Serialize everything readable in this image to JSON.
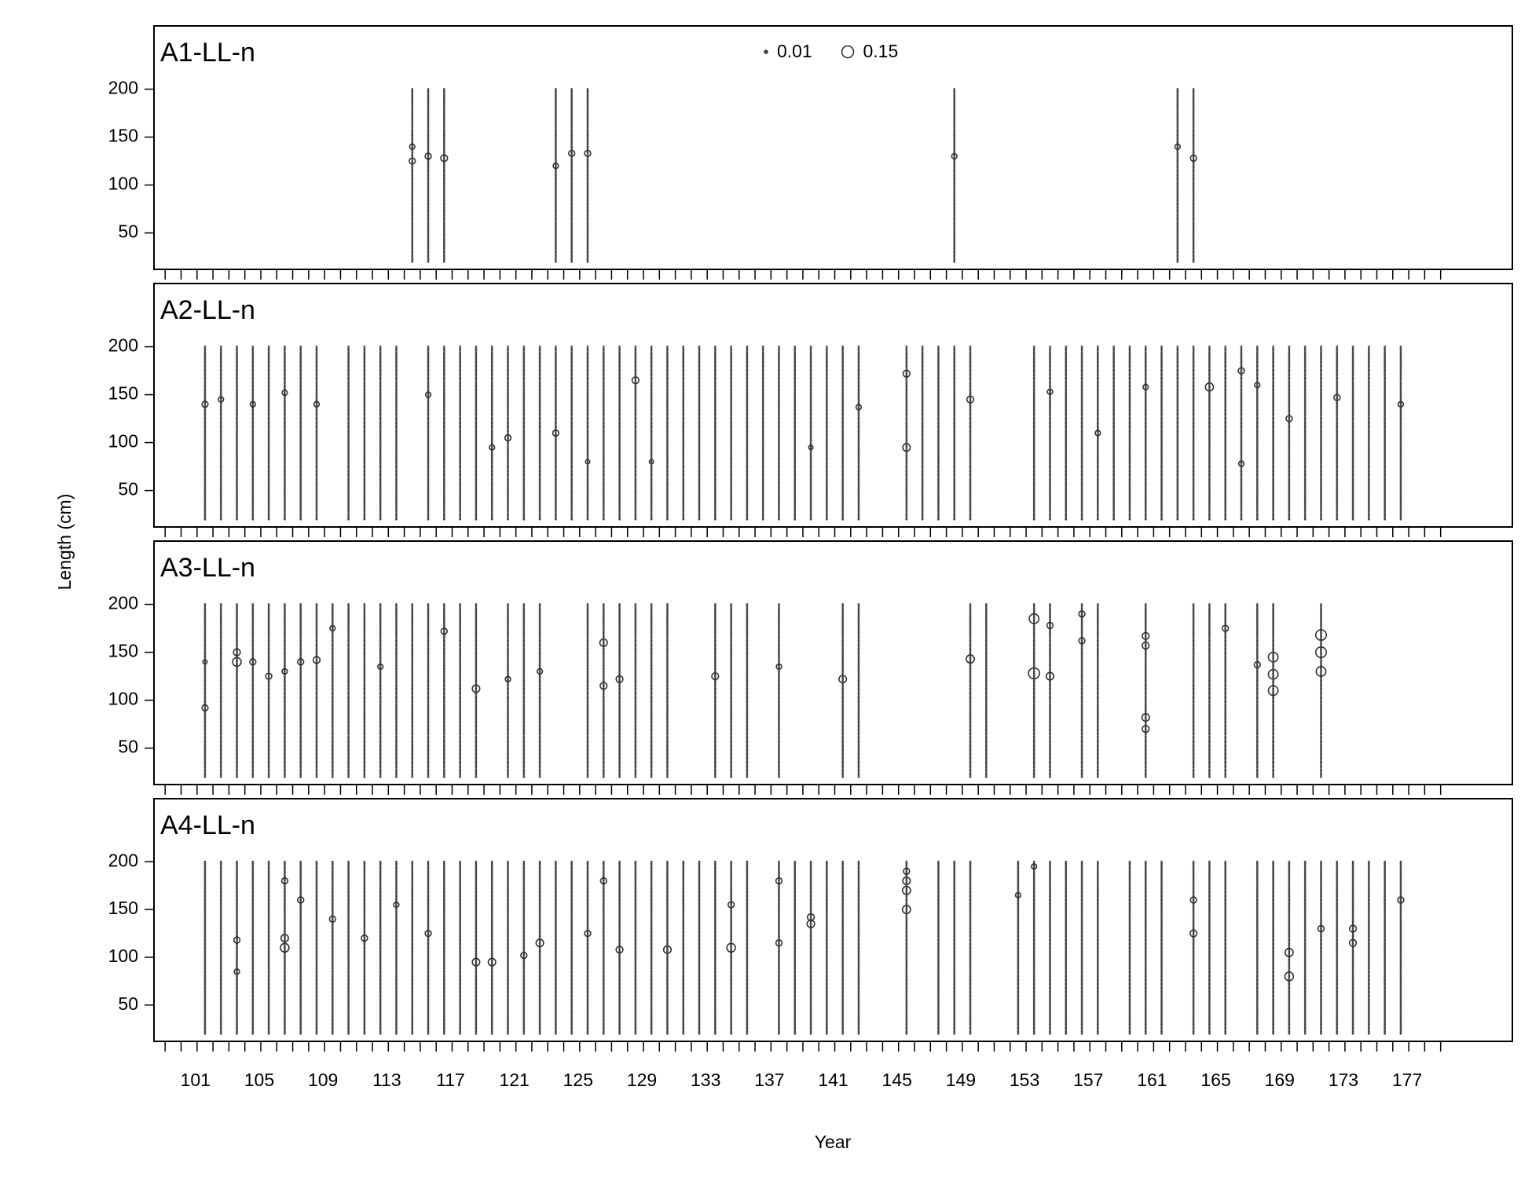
{
  "chart_data": {
    "type": "bubble",
    "x_label": "Year",
    "y_label": "Length (cm)",
    "xlim": [
      98.3,
      183.5
    ],
    "ylim": [
      12,
      266
    ],
    "yticks": [
      50,
      100,
      150,
      200
    ],
    "xticks": [
      101,
      105,
      109,
      113,
      117,
      121,
      125,
      129,
      133,
      137,
      141,
      145,
      149,
      153,
      157,
      161,
      165,
      169,
      173,
      177
    ],
    "xminor_ticks": [
      99,
      100,
      101,
      102,
      103,
      104,
      105,
      106,
      107,
      108,
      109,
      110,
      111,
      112,
      113,
      114,
      115,
      116,
      117,
      118,
      119,
      120,
      121,
      122,
      123,
      124,
      125,
      126,
      127,
      128,
      129,
      130,
      131,
      132,
      133,
      134,
      135,
      136,
      137,
      138,
      139,
      140,
      141,
      142,
      143,
      144,
      145,
      146,
      147,
      148,
      149,
      150,
      151,
      152,
      153,
      154,
      155,
      156,
      157,
      158,
      159,
      160,
      161,
      162,
      163,
      164,
      165,
      166,
      167,
      168,
      169,
      170,
      171,
      172,
      173,
      174,
      175,
      176,
      177,
      178,
      179
    ],
    "length_bins": [
      20,
      22,
      24,
      26,
      28,
      30,
      32,
      34,
      36,
      38,
      40,
      42,
      44,
      46,
      48,
      50,
      52,
      54,
      56,
      58,
      60,
      62,
      64,
      66,
      68,
      70,
      72,
      74,
      76,
      78,
      80,
      82,
      84,
      86,
      88,
      90,
      92,
      94,
      96,
      98,
      100,
      102,
      104,
      106,
      108,
      110,
      112,
      114,
      116,
      118,
      120,
      122,
      124,
      126,
      128,
      130,
      132,
      134,
      136,
      138,
      140,
      142,
      144,
      146,
      148,
      150,
      152,
      154,
      156,
      158,
      160,
      162,
      164,
      166,
      168,
      170,
      172,
      174,
      176,
      178,
      180,
      182,
      184,
      186,
      188,
      190,
      192,
      194,
      196,
      198,
      200
    ],
    "legend": {
      "values": [
        0.01,
        0.15
      ]
    },
    "panels": [
      {
        "title": "A1-LL-n",
        "columns": [
          114.5,
          115.5,
          116.5,
          123.5,
          124.5,
          125.5,
          148.5,
          162.5,
          163.5
        ],
        "bubbles": {
          "x": [
            114.5,
            114.5,
            115.5,
            116.5,
            123.5,
            124.5,
            125.5,
            148.5,
            162.5,
            163.5
          ],
          "y": [
            125,
            140,
            130,
            128,
            120,
            133,
            133,
            130,
            140,
            128
          ],
          "size": [
            0.04,
            0.03,
            0.04,
            0.05,
            0.03,
            0.04,
            0.04,
            0.03,
            0.03,
            0.04
          ]
        }
      },
      {
        "title": "A2-LL-n",
        "columns": [
          101.5,
          102.5,
          103.5,
          104.5,
          105.5,
          106.5,
          107.5,
          108.5,
          110.5,
          111.5,
          112.5,
          113.5,
          115.5,
          116.5,
          117.5,
          118.5,
          119.5,
          120.5,
          121.5,
          122.5,
          123.5,
          124.5,
          125.5,
          126.5,
          127.5,
          128.5,
          129.5,
          130.5,
          131.5,
          132.5,
          133.5,
          134.5,
          135.5,
          136.5,
          137.5,
          138.5,
          139.5,
          140.5,
          141.5,
          142.5,
          145.5,
          146.5,
          147.5,
          148.5,
          149.5,
          153.5,
          154.5,
          155.5,
          156.5,
          157.5,
          158.5,
          159.5,
          160.5,
          161.5,
          162.5,
          163.5,
          164.5,
          165.5,
          166.5,
          167.5,
          168.5,
          169.5,
          170.5,
          171.5,
          172.5,
          173.5,
          174.5,
          175.5,
          176.5
        ],
        "bubbles": {
          "x": [
            101.5,
            102.5,
            104.5,
            106.5,
            108.5,
            115.5,
            119.5,
            120.5,
            123.5,
            125.5,
            128.5,
            129.5,
            139.5,
            142.5,
            145.5,
            145.5,
            149.5,
            154.5,
            157.5,
            160.5,
            164.5,
            166.5,
            166.5,
            167.5,
            169.5,
            172.5,
            176.5
          ],
          "y": [
            140,
            145,
            140,
            152,
            140,
            150,
            95,
            105,
            110,
            80,
            165,
            80,
            95,
            137,
            95,
            172,
            145,
            153,
            110,
            158,
            158,
            78,
            175,
            160,
            125,
            147,
            140
          ],
          "size": [
            0.04,
            0.03,
            0.03,
            0.03,
            0.03,
            0.03,
            0.03,
            0.04,
            0.04,
            0.02,
            0.05,
            0.02,
            0.02,
            0.03,
            0.06,
            0.05,
            0.05,
            0.03,
            0.03,
            0.03,
            0.07,
            0.03,
            0.04,
            0.03,
            0.04,
            0.04,
            0.03
          ]
        }
      },
      {
        "title": "A3-LL-n",
        "columns": [
          101.5,
          102.5,
          103.5,
          104.5,
          105.5,
          106.5,
          107.5,
          108.5,
          109.5,
          110.5,
          111.5,
          112.5,
          113.5,
          114.5,
          115.5,
          116.5,
          117.5,
          118.5,
          120.5,
          121.5,
          122.5,
          125.5,
          126.5,
          127.5,
          128.5,
          129.5,
          130.5,
          133.5,
          134.5,
          135.5,
          137.5,
          141.5,
          142.5,
          149.5,
          150.5,
          153.5,
          154.5,
          156.5,
          157.5,
          160.5,
          163.5,
          164.5,
          165.5,
          167.5,
          168.5,
          171.5
        ],
        "bubbles": {
          "x": [
            101.5,
            101.5,
            103.5,
            103.5,
            104.5,
            105.5,
            106.5,
            107.5,
            108.5,
            109.5,
            112.5,
            116.5,
            118.5,
            120.5,
            122.5,
            126.5,
            126.5,
            127.5,
            133.5,
            137.5,
            141.5,
            149.5,
            153.5,
            153.5,
            154.5,
            154.5,
            156.5,
            156.5,
            160.5,
            160.5,
            160.5,
            160.5,
            165.5,
            167.5,
            168.5,
            168.5,
            168.5,
            171.5,
            171.5,
            171.5
          ],
          "y": [
            92,
            140,
            140,
            150,
            140,
            125,
            130,
            140,
            142,
            175,
            135,
            172,
            112,
            122,
            130,
            160,
            115,
            122,
            125,
            135,
            122,
            143,
            185,
            128,
            125,
            178,
            190,
            162,
            70,
            82,
            157,
            167,
            175,
            137,
            145,
            127,
            110,
            168,
            150,
            130
          ],
          "size": [
            0.04,
            0.02,
            0.08,
            0.05,
            0.04,
            0.04,
            0.03,
            0.04,
            0.05,
            0.03,
            0.03,
            0.04,
            0.06,
            0.03,
            0.03,
            0.06,
            0.05,
            0.05,
            0.05,
            0.03,
            0.06,
            0.07,
            0.1,
            0.13,
            0.06,
            0.04,
            0.04,
            0.04,
            0.05,
            0.06,
            0.05,
            0.05,
            0.04,
            0.04,
            0.1,
            0.1,
            0.1,
            0.12,
            0.12,
            0.1
          ]
        }
      },
      {
        "title": "A4-LL-n",
        "columns": [
          101.5,
          102.5,
          103.5,
          104.5,
          105.5,
          106.5,
          107.5,
          108.5,
          109.5,
          110.5,
          111.5,
          112.5,
          113.5,
          114.5,
          115.5,
          116.5,
          117.5,
          118.5,
          119.5,
          120.5,
          121.5,
          122.5,
          123.5,
          124.5,
          125.5,
          126.5,
          127.5,
          128.5,
          129.5,
          130.5,
          131.5,
          132.5,
          133.5,
          134.5,
          135.5,
          137.5,
          138.5,
          139.5,
          140.5,
          141.5,
          142.5,
          145.5,
          147.5,
          148.5,
          149.5,
          152.5,
          153.5,
          154.5,
          155.5,
          156.5,
          157.5,
          159.5,
          160.5,
          161.5,
          163.5,
          164.5,
          165.5,
          167.5,
          168.5,
          169.5,
          170.5,
          171.5,
          172.5,
          173.5,
          174.5,
          175.5,
          176.5
        ],
        "bubbles": {
          "x": [
            103.5,
            103.5,
            106.5,
            106.5,
            106.5,
            107.5,
            109.5,
            111.5,
            113.5,
            115.5,
            118.5,
            119.5,
            121.5,
            122.5,
            125.5,
            126.5,
            127.5,
            130.5,
            134.5,
            134.5,
            137.5,
            137.5,
            139.5,
            139.5,
            145.5,
            145.5,
            145.5,
            145.5,
            152.5,
            153.5,
            163.5,
            163.5,
            169.5,
            169.5,
            171.5,
            173.5,
            173.5,
            176.5
          ],
          "y": [
            85,
            118,
            110,
            120,
            180,
            160,
            140,
            120,
            155,
            125,
            95,
            95,
            102,
            115,
            125,
            180,
            108,
            108,
            110,
            155,
            115,
            180,
            135,
            142,
            150,
            170,
            180,
            190,
            165,
            195,
            125,
            160,
            105,
            80,
            130,
            115,
            130,
            160
          ],
          "size": [
            0.03,
            0.04,
            0.08,
            0.06,
            0.04,
            0.04,
            0.04,
            0.04,
            0.03,
            0.04,
            0.06,
            0.06,
            0.04,
            0.06,
            0.04,
            0.04,
            0.05,
            0.06,
            0.08,
            0.04,
            0.04,
            0.04,
            0.06,
            0.05,
            0.07,
            0.07,
            0.06,
            0.04,
            0.03,
            0.03,
            0.05,
            0.04,
            0.07,
            0.08,
            0.04,
            0.05,
            0.05,
            0.04
          ]
        }
      }
    ]
  }
}
